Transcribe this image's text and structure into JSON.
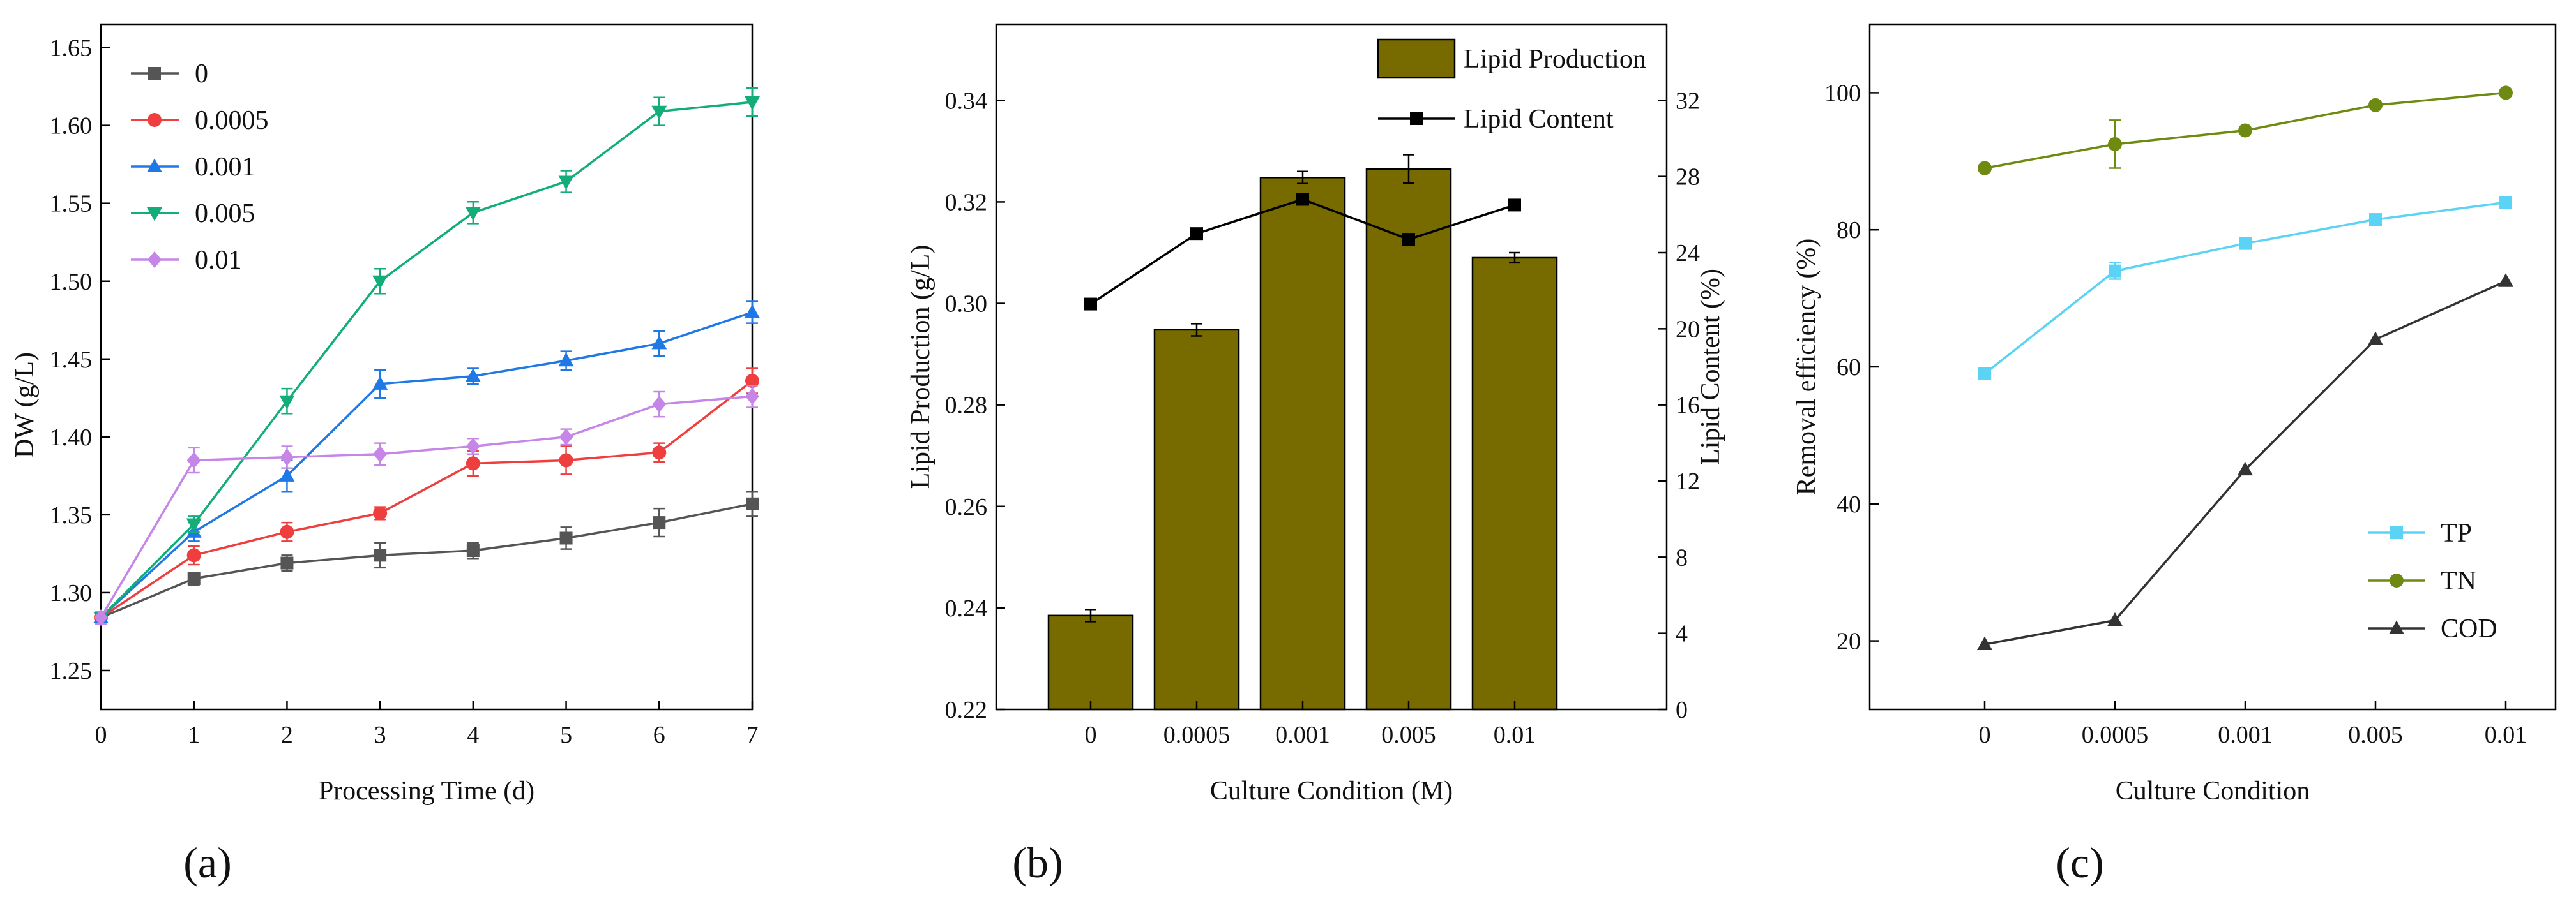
{
  "panel_labels": [
    "(a)",
    "(b)",
    "(c)"
  ],
  "colors": {
    "s0": "#555555",
    "s0005": "#ef3e3e",
    "s001": "#1e78e6",
    "s005": "#12ad7a",
    "s01": "#c586e8",
    "bar": "#776b00",
    "lipid_content": "#000000",
    "TP": "#5bd3f5",
    "TN": "#6f8a10",
    "COD": "#333333"
  },
  "chart_data": [
    {
      "type": "line",
      "panel": "(a)",
      "title": "",
      "xlabel": "Processing Time (d)",
      "ylabel": "DW (g/L)",
      "x": [
        0,
        1,
        2,
        3,
        4,
        5,
        6,
        7
      ],
      "xlim": [
        0,
        7
      ],
      "ylim": [
        1.225,
        1.665
      ],
      "xticks": [
        "0",
        "1",
        "2",
        "3",
        "4",
        "5",
        "6",
        "7"
      ],
      "yticks": [
        "1.25",
        "1.30",
        "1.35",
        "1.40",
        "1.45",
        "1.50",
        "1.55",
        "1.60",
        "1.65"
      ],
      "legend_position": "top-left",
      "series": [
        {
          "name": "0",
          "marker": "square",
          "color_key": "s0",
          "values": [
            1.284,
            1.309,
            1.319,
            1.324,
            1.327,
            1.335,
            1.345,
            1.357
          ],
          "err": [
            0.004,
            0.004,
            0.005,
            0.008,
            0.005,
            0.007,
            0.009,
            0.008
          ]
        },
        {
          "name": "0.0005",
          "marker": "circle",
          "color_key": "s0005",
          "values": [
            1.284,
            1.324,
            1.339,
            1.351,
            1.383,
            1.385,
            1.39,
            1.436
          ],
          "err": [
            0.004,
            0.006,
            0.006,
            0.004,
            0.008,
            0.009,
            0.006,
            0.008
          ]
        },
        {
          "name": "0.001",
          "marker": "triangle-up",
          "color_key": "s001",
          "values": [
            1.284,
            1.339,
            1.375,
            1.434,
            1.439,
            1.449,
            1.46,
            1.48
          ],
          "err": [
            0.004,
            0.006,
            0.01,
            0.009,
            0.005,
            0.006,
            0.008,
            0.007
          ]
        },
        {
          "name": "0.005",
          "marker": "triangle-down",
          "color_key": "s005",
          "values": [
            1.284,
            1.344,
            1.423,
            1.5,
            1.544,
            1.564,
            1.609,
            1.615
          ],
          "err": [
            0.004,
            0.005,
            0.008,
            0.008,
            0.007,
            0.007,
            0.009,
            0.009
          ]
        },
        {
          "name": "0.01",
          "marker": "diamond",
          "color_key": "s01",
          "values": [
            1.284,
            1.385,
            1.387,
            1.389,
            1.394,
            1.4,
            1.421,
            1.426
          ],
          "err": [
            0.004,
            0.008,
            0.007,
            0.007,
            0.005,
            0.005,
            0.008,
            0.007
          ]
        }
      ]
    },
    {
      "type": "bar",
      "panel": "(b)",
      "title": "",
      "xlabel": "Culture Condition (M)",
      "ylabel": "Lipid Production (g/L)",
      "y2label": "Lipid Content (%)",
      "categories": [
        "0",
        "0.0005",
        "0.001",
        "0.005",
        "0.01"
      ],
      "ylim": [
        0.22,
        0.355
      ],
      "y2lim": [
        0,
        36
      ],
      "yticks": [
        "0.22",
        "0.24",
        "0.26",
        "0.28",
        "0.30",
        "0.32",
        "0.34"
      ],
      "y2ticks": [
        "0",
        "4",
        "8",
        "12",
        "16",
        "20",
        "24",
        "28",
        "32"
      ],
      "legend_position": "top-right",
      "series": [
        {
          "name": "Lipid Production",
          "type": "bar",
          "color_key": "bar",
          "values": [
            0.2385,
            0.2948,
            0.3248,
            0.3265,
            0.309
          ],
          "err": [
            0.0012,
            0.0012,
            0.0012,
            0.0028,
            0.001
          ]
        },
        {
          "name": "Lipid Content",
          "type": "line",
          "marker": "square",
          "axis": "right",
          "color_key": "lipid_content",
          "values": [
            21.3,
            25.0,
            26.8,
            24.7,
            26.5
          ]
        }
      ]
    },
    {
      "type": "line",
      "panel": "(c)",
      "title": "",
      "xlabel": "Culture Condition",
      "ylabel": "Removal efficiency (%)",
      "categories": [
        "0",
        "0.0005",
        "0.001",
        "0.005",
        "0.01"
      ],
      "ylim": [
        10,
        110
      ],
      "yticks": [
        "20",
        "40",
        "60",
        "80",
        "100"
      ],
      "legend_position": "bottom-right",
      "series": [
        {
          "name": "TP",
          "marker": "square",
          "color_key": "TP",
          "values": [
            59.0,
            74.0,
            78.0,
            81.5,
            84.0
          ],
          "err": [
            0,
            1.2,
            0,
            0,
            0
          ]
        },
        {
          "name": "TN",
          "marker": "circle",
          "color_key": "TN",
          "values": [
            89.0,
            92.5,
            94.5,
            98.2,
            100.0
          ],
          "err": [
            0,
            3.5,
            0,
            0,
            0
          ]
        },
        {
          "name": "COD",
          "marker": "triangle-up",
          "color_key": "COD",
          "values": [
            19.5,
            23.0,
            45.0,
            64.0,
            72.5
          ],
          "err": [
            0,
            0,
            0,
            0,
            0
          ]
        }
      ]
    }
  ]
}
